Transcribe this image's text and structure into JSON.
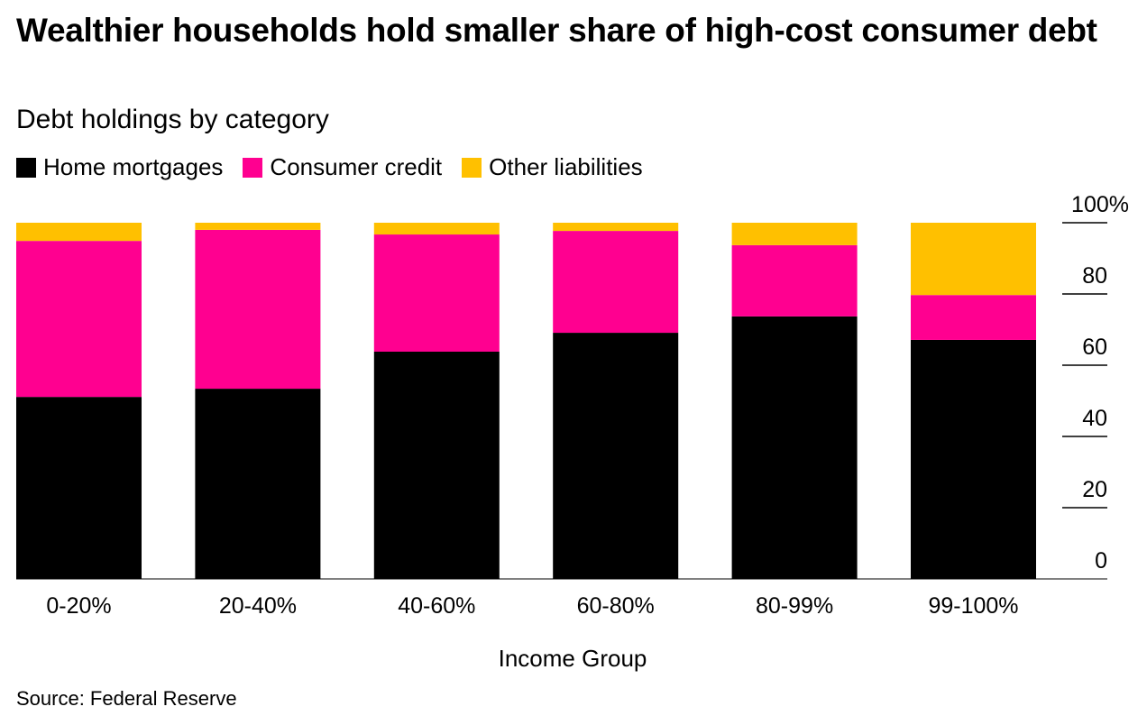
{
  "title": "Wealthier households hold smaller share of high-cost consumer debt",
  "subtitle": "Debt holdings by category",
  "source": "Source: Federal Reserve",
  "chart_data": {
    "type": "bar",
    "stacked": true,
    "title": "Wealthier households hold smaller share of high-cost consumer debt",
    "subtitle": "Debt holdings by category",
    "xlabel": "Income Group",
    "ylabel": "",
    "ylim": [
      0,
      100
    ],
    "yticks": [
      "0",
      "20",
      "40",
      "60",
      "80",
      "100%"
    ],
    "ytick_values": [
      0,
      20,
      40,
      60,
      80,
      100
    ],
    "categories": [
      "0-20%",
      "20-40%",
      "40-60%",
      "60-80%",
      "80-99%",
      "99-100%"
    ],
    "legend_position": "top-left",
    "series": [
      {
        "name": "Home mortgages",
        "color": "#000000",
        "values": [
          51.1,
          53.4,
          63.8,
          69.1,
          73.7,
          67.1
        ]
      },
      {
        "name": "Consumer credit",
        "color": "#ff0090",
        "values": [
          43.8,
          44.6,
          32.9,
          28.6,
          20.0,
          12.6
        ]
      },
      {
        "name": "Other liabilities",
        "color": "#ffc000",
        "values": [
          5.1,
          2.0,
          3.3,
          2.3,
          6.3,
          20.3
        ]
      }
    ]
  }
}
